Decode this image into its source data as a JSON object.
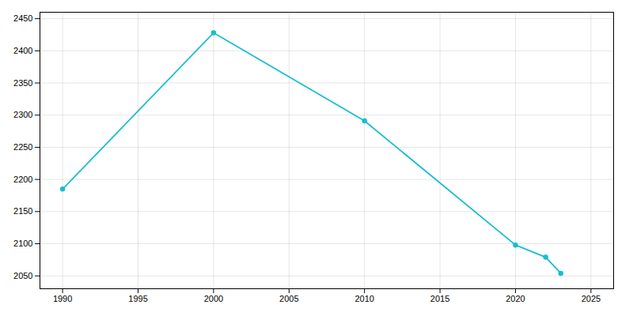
{
  "chart_data": {
    "type": "line",
    "x": [
      1990,
      2000,
      2010,
      2020,
      2022,
      2023
    ],
    "values": [
      2185,
      2428,
      2291,
      2098,
      2079,
      2054
    ],
    "color": "#17BECF",
    "marker": "circle",
    "xlim": [
      1988.5,
      2026.5
    ],
    "ylim": [
      2030,
      2460
    ],
    "xticks": [
      1990,
      1995,
      2000,
      2005,
      2010,
      2015,
      2020,
      2025
    ],
    "yticks": [
      2050,
      2100,
      2150,
      2200,
      2250,
      2300,
      2350,
      2400,
      2450
    ],
    "grid": true
  }
}
